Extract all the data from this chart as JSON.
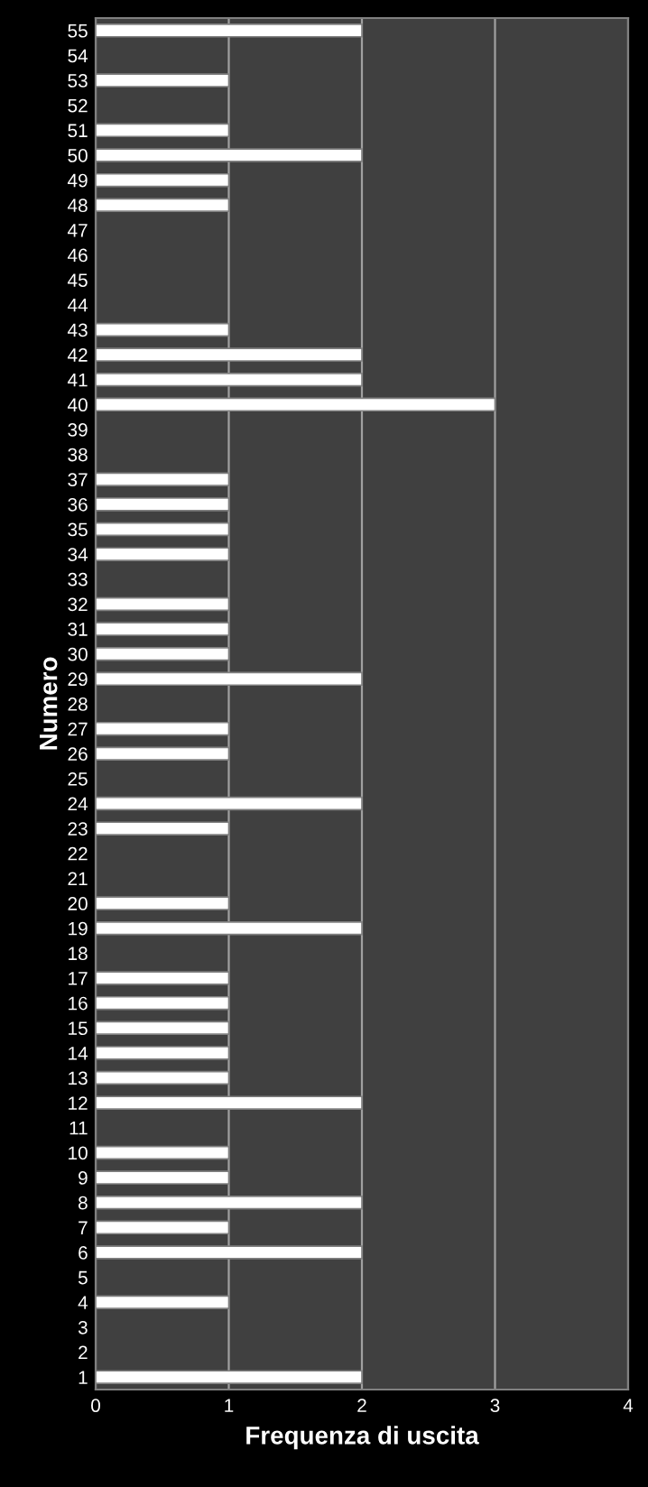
{
  "chart_data": {
    "type": "bar",
    "orientation": "horizontal",
    "xlabel": "Frequenza di uscita",
    "ylabel": "Numero",
    "categories": [
      "55",
      "54",
      "53",
      "52",
      "51",
      "50",
      "49",
      "48",
      "47",
      "46",
      "45",
      "44",
      "43",
      "42",
      "41",
      "40",
      "39",
      "38",
      "37",
      "36",
      "35",
      "34",
      "33",
      "32",
      "31",
      "30",
      "29",
      "28",
      "27",
      "26",
      "25",
      "24",
      "23",
      "22",
      "21",
      "20",
      "19",
      "18",
      "17",
      "16",
      "15",
      "14",
      "13",
      "12",
      "11",
      "10",
      "9",
      "8",
      "7",
      "6",
      "5",
      "4",
      "3",
      "2",
      "1"
    ],
    "values": [
      2,
      0,
      1,
      0,
      1,
      2,
      1,
      1,
      0,
      0,
      0,
      0,
      1,
      2,
      2,
      3,
      0,
      0,
      1,
      1,
      1,
      1,
      0,
      1,
      1,
      1,
      2,
      0,
      1,
      1,
      0,
      2,
      1,
      0,
      0,
      1,
      2,
      0,
      1,
      1,
      1,
      1,
      1,
      2,
      0,
      1,
      1,
      2,
      1,
      2,
      0,
      1,
      0,
      0,
      2
    ],
    "color": "#ffffff",
    "xlim": [
      0,
      4
    ],
    "xticks": [
      0,
      1,
      2,
      3,
      4
    ],
    "grid": "x",
    "legend": false
  }
}
